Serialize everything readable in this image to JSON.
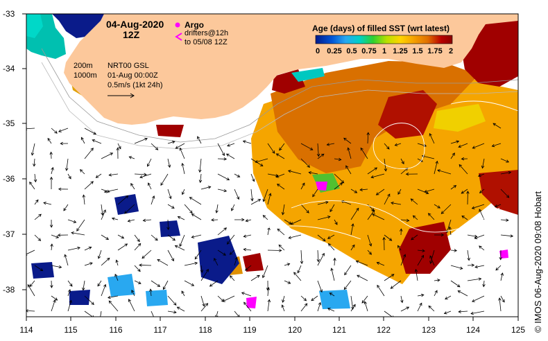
{
  "map": {
    "date_label": "04-Aug-2020",
    "time_label": "12Z",
    "argo_label": "Argo",
    "drifters_line1": "drifters@12h",
    "drifters_line2": "to 05/08 12Z",
    "contour_200": "200m",
    "contour_1000": "1000m",
    "product_line1": "NRT00 GSL",
    "product_line2": "01-Aug 00:00Z",
    "vector_scale": "0.5m/s (1kt 24h)",
    "credit": "© IMOS 06-Aug-2020 09:08 Hobart",
    "land_color": "#fcc89b",
    "argo_color": "#ff00ff",
    "drifter_color": "#ff00ff"
  },
  "colorbar": {
    "title": "Age (days) of filled SST (wrt latest)",
    "ticks": [
      "0",
      "0.25",
      "0.5",
      "0.75",
      "1",
      "1.25",
      "1.5",
      "1.75",
      "2"
    ],
    "colors": [
      "#001b8c",
      "#0055d6",
      "#29a8f0",
      "#00d0c8",
      "#30d030",
      "#b8e000",
      "#ffd400",
      "#f5a000",
      "#e07000",
      "#b80000",
      "#8c0000"
    ]
  },
  "axes": {
    "x_ticks": [
      "114",
      "115",
      "116",
      "117",
      "118",
      "119",
      "120",
      "121",
      "122",
      "123",
      "124",
      "125"
    ],
    "y_ticks": [
      "-33",
      "-34",
      "-35",
      "-36",
      "-37",
      "-38"
    ]
  }
}
